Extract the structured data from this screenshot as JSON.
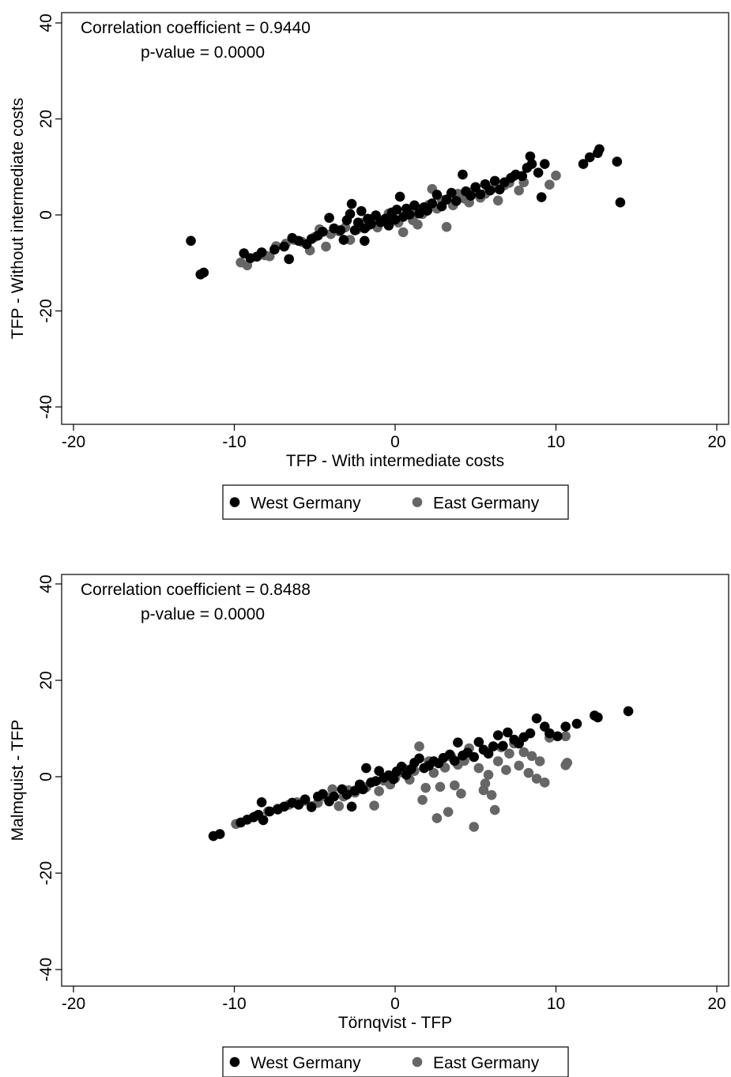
{
  "chart_data": [
    {
      "type": "scatter",
      "annotation": [
        "Correlation coefficient = 0.9440",
        "p-value = 0.0000"
      ],
      "xlabel": "TFP - With intermediate costs",
      "ylabel": "TFP - Without intermediate costs",
      "xlim": [
        -20,
        20
      ],
      "ylim": [
        -40,
        40
      ],
      "xticks": [
        "-20",
        "-10",
        "0",
        "10",
        "20"
      ],
      "yticks": [
        "-40",
        "-20",
        "0",
        "20",
        "40"
      ],
      "grid": false,
      "legend_position": "bottom",
      "series": [
        {
          "name": "West Germany",
          "color": "#000000",
          "points": [
            [
              -12.7,
              -5.4
            ],
            [
              -12.1,
              -12.4
            ],
            [
              -11.9,
              -12.0
            ],
            [
              -9.4,
              -8.0
            ],
            [
              -9.0,
              -9.0
            ],
            [
              -8.6,
              -8.7
            ],
            [
              -8.3,
              -7.8
            ],
            [
              -7.5,
              -7.2
            ],
            [
              -6.9,
              -6.6
            ],
            [
              -6.6,
              -9.2
            ],
            [
              -6.4,
              -4.8
            ],
            [
              -6.0,
              -5.4
            ],
            [
              -5.5,
              -6.1
            ],
            [
              -5.2,
              -5.0
            ],
            [
              -4.8,
              -4.3
            ],
            [
              -4.5,
              -3.5
            ],
            [
              -4.1,
              -0.6
            ],
            [
              -3.8,
              -2.8
            ],
            [
              -3.4,
              -3.2
            ],
            [
              -3.2,
              -5.2
            ],
            [
              -3.0,
              -1.1
            ],
            [
              -2.8,
              0.2
            ],
            [
              -2.7,
              2.3
            ],
            [
              -2.5,
              -3.2
            ],
            [
              -2.3,
              -1.6
            ],
            [
              -2.1,
              0.8
            ],
            [
              -1.9,
              -2.8
            ],
            [
              -1.9,
              -5.4
            ],
            [
              -1.7,
              -0.8
            ],
            [
              -1.5,
              -1.9
            ],
            [
              -1.2,
              -0.1
            ],
            [
              -0.9,
              -1.5
            ],
            [
              -0.6,
              -0.8
            ],
            [
              -0.4,
              -2.2
            ],
            [
              -0.2,
              0.5
            ],
            [
              0.0,
              -1.0
            ],
            [
              0.1,
              1.1
            ],
            [
              0.3,
              3.8
            ],
            [
              0.5,
              -0.4
            ],
            [
              0.7,
              1.3
            ],
            [
              0.9,
              0.1
            ],
            [
              1.2,
              2.0
            ],
            [
              1.5,
              0.3
            ],
            [
              1.8,
              1.6
            ],
            [
              2.0,
              0.9
            ],
            [
              2.3,
              2.4
            ],
            [
              2.6,
              4.2
            ],
            [
              2.9,
              1.8
            ],
            [
              3.2,
              3.2
            ],
            [
              3.5,
              4.6
            ],
            [
              3.8,
              2.9
            ],
            [
              4.2,
              8.4
            ],
            [
              4.4,
              4.9
            ],
            [
              4.7,
              4.0
            ],
            [
              5.0,
              5.8
            ],
            [
              5.3,
              4.3
            ],
            [
              5.6,
              6.4
            ],
            [
              5.9,
              5.1
            ],
            [
              6.2,
              7.1
            ],
            [
              6.5,
              5.3
            ],
            [
              6.8,
              6.8
            ],
            [
              7.2,
              7.7
            ],
            [
              7.5,
              8.4
            ],
            [
              7.9,
              8.1
            ],
            [
              8.2,
              9.8
            ],
            [
              8.5,
              10.6
            ],
            [
              8.4,
              12.2
            ],
            [
              8.9,
              8.8
            ],
            [
              9.1,
              3.7
            ],
            [
              9.3,
              10.6
            ],
            [
              11.7,
              10.6
            ],
            [
              12.1,
              12.0
            ],
            [
              12.6,
              12.9
            ],
            [
              12.7,
              13.7
            ],
            [
              13.8,
              11.1
            ],
            [
              14.0,
              2.6
            ]
          ]
        },
        {
          "name": "East Germany",
          "color": "#666666",
          "points": [
            [
              -9.6,
              -9.9
            ],
            [
              -9.2,
              -10.5
            ],
            [
              -8.1,
              -8.4
            ],
            [
              -7.8,
              -8.6
            ],
            [
              -7.4,
              -6.5
            ],
            [
              -6.8,
              -6.0
            ],
            [
              -6.3,
              -5.2
            ],
            [
              -5.8,
              -5.6
            ],
            [
              -5.3,
              -7.4
            ],
            [
              -5.0,
              -4.6
            ],
            [
              -4.7,
              -3.0
            ],
            [
              -4.3,
              -6.6
            ],
            [
              -4.0,
              -4.0
            ],
            [
              -3.5,
              -3.4
            ],
            [
              -3.1,
              -2.6
            ],
            [
              -2.8,
              -5.2
            ],
            [
              -2.4,
              -3.1
            ],
            [
              -2.1,
              -1.7
            ],
            [
              -1.7,
              -2.3
            ],
            [
              -1.4,
              -0.8
            ],
            [
              -1.1,
              -2.6
            ],
            [
              -0.8,
              -1.1
            ],
            [
              -0.4,
              0.3
            ],
            [
              -0.1,
              -0.9
            ],
            [
              0.2,
              -1.6
            ],
            [
              0.5,
              -3.6
            ],
            [
              0.8,
              0.6
            ],
            [
              1.1,
              -1.1
            ],
            [
              1.4,
              1.3
            ],
            [
              1.7,
              0.2
            ],
            [
              1.4,
              -2.0
            ],
            [
              2.1,
              2.1
            ],
            [
              2.3,
              5.4
            ],
            [
              2.6,
              1.3
            ],
            [
              2.9,
              3.1
            ],
            [
              3.2,
              -2.5
            ],
            [
              3.6,
              2.0
            ],
            [
              3.9,
              4.4
            ],
            [
              4.3,
              3.4
            ],
            [
              4.6,
              2.6
            ],
            [
              4.9,
              5.1
            ],
            [
              5.3,
              3.6
            ],
            [
              5.6,
              4.4
            ],
            [
              6.0,
              5.4
            ],
            [
              6.4,
              3.0
            ],
            [
              6.8,
              6.2
            ],
            [
              7.1,
              6.7
            ],
            [
              7.4,
              8.1
            ],
            [
              7.7,
              5.1
            ],
            [
              8.0,
              6.8
            ],
            [
              9.6,
              6.3
            ],
            [
              10.0,
              8.2
            ]
          ]
        }
      ]
    },
    {
      "type": "scatter",
      "annotation": [
        "Correlation coefficient = 0.8488",
        "p-value = 0.0000"
      ],
      "xlabel": "Törnqvist - TFP",
      "ylabel": "Malmquist - TFP",
      "xlim": [
        -20,
        20
      ],
      "ylim": [
        -40,
        40
      ],
      "xticks": [
        "-20",
        "-10",
        "0",
        "10",
        "20"
      ],
      "yticks": [
        "-40",
        "-20",
        "0",
        "20",
        "40"
      ],
      "grid": false,
      "legend_position": "bottom",
      "series": [
        {
          "name": "West Germany",
          "color": "#000000",
          "points": [
            [
              -11.3,
              -12.3
            ],
            [
              -10.9,
              -11.9
            ],
            [
              -9.6,
              -9.5
            ],
            [
              -9.2,
              -8.9
            ],
            [
              -8.8,
              -8.4
            ],
            [
              -8.5,
              -7.9
            ],
            [
              -8.2,
              -9.0
            ],
            [
              -8.3,
              -5.3
            ],
            [
              -7.8,
              -7.2
            ],
            [
              -7.3,
              -6.8
            ],
            [
              -6.9,
              -6.2
            ],
            [
              -6.4,
              -5.4
            ],
            [
              -6.0,
              -5.8
            ],
            [
              -5.6,
              -4.7
            ],
            [
              -5.2,
              -6.3
            ],
            [
              -4.8,
              -4.1
            ],
            [
              -4.5,
              -3.6
            ],
            [
              -4.1,
              -5.1
            ],
            [
              -3.8,
              -4.1
            ],
            [
              -3.3,
              -2.6
            ],
            [
              -3.0,
              -3.7
            ],
            [
              -2.7,
              -6.2
            ],
            [
              -2.5,
              -2.9
            ],
            [
              -2.2,
              -1.6
            ],
            [
              -2.0,
              -2.6
            ],
            [
              -1.8,
              1.8
            ],
            [
              -1.5,
              -1.2
            ],
            [
              -1.2,
              -0.9
            ],
            [
              -1.0,
              1.2
            ],
            [
              -0.7,
              -0.2
            ],
            [
              -0.4,
              0.3
            ],
            [
              -0.1,
              -0.5
            ],
            [
              0.1,
              1.1
            ],
            [
              0.4,
              2.1
            ],
            [
              0.7,
              0.4
            ],
            [
              1.0,
              1.6
            ],
            [
              1.2,
              2.9
            ],
            [
              1.5,
              3.8
            ],
            [
              1.8,
              1.8
            ],
            [
              2.1,
              2.3
            ],
            [
              2.4,
              3.2
            ],
            [
              2.7,
              2.8
            ],
            [
              3.0,
              3.9
            ],
            [
              3.4,
              4.6
            ],
            [
              3.7,
              3.3
            ],
            [
              3.9,
              7.1
            ],
            [
              4.2,
              4.4
            ],
            [
              4.5,
              5.0
            ],
            [
              4.9,
              4.1
            ],
            [
              5.2,
              7.2
            ],
            [
              5.5,
              5.6
            ],
            [
              5.8,
              4.8
            ],
            [
              6.1,
              6.3
            ],
            [
              6.4,
              8.6
            ],
            [
              6.7,
              6.4
            ],
            [
              7.0,
              9.2
            ],
            [
              7.4,
              7.7
            ],
            [
              7.7,
              6.9
            ],
            [
              8.0,
              8.2
            ],
            [
              8.4,
              9.0
            ],
            [
              8.8,
              12.1
            ],
            [
              9.3,
              10.4
            ],
            [
              9.6,
              9.0
            ],
            [
              10.1,
              8.4
            ],
            [
              10.6,
              10.4
            ],
            [
              11.3,
              11.0
            ],
            [
              12.4,
              12.7
            ],
            [
              12.6,
              12.3
            ],
            [
              14.5,
              13.6
            ]
          ]
        },
        {
          "name": "East Germany",
          "color": "#666666",
          "points": [
            [
              -9.9,
              -9.8
            ],
            [
              -8.7,
              -8.2
            ],
            [
              -7.9,
              -7.2
            ],
            [
              -7.3,
              -6.6
            ],
            [
              -6.6,
              -5.8
            ],
            [
              -6.1,
              -5.3
            ],
            [
              -5.6,
              -5.0
            ],
            [
              -5.2,
              -6.1
            ],
            [
              -4.8,
              -5.4
            ],
            [
              -4.3,
              -4.2
            ],
            [
              -3.9,
              -2.6
            ],
            [
              -3.5,
              -6.1
            ],
            [
              -3.2,
              -4.1
            ],
            [
              -2.9,
              -2.8
            ],
            [
              -2.5,
              -3.3
            ],
            [
              -2.1,
              -1.9
            ],
            [
              -1.8,
              -2.2
            ],
            [
              -1.3,
              -6.0
            ],
            [
              -1.0,
              -3.0
            ],
            [
              -0.7,
              -0.8
            ],
            [
              -0.3,
              -1.6
            ],
            [
              0.0,
              -0.3
            ],
            [
              0.3,
              0.9
            ],
            [
              0.6,
              1.6
            ],
            [
              0.9,
              -0.6
            ],
            [
              1.2,
              1.2
            ],
            [
              1.5,
              6.3
            ],
            [
              1.7,
              -4.8
            ],
            [
              1.9,
              -2.3
            ],
            [
              2.1,
              3.2
            ],
            [
              2.4,
              0.8
            ],
            [
              2.6,
              -8.6
            ],
            [
              2.8,
              -2.1
            ],
            [
              3.1,
              1.9
            ],
            [
              3.3,
              -7.3
            ],
            [
              3.5,
              4.1
            ],
            [
              3.7,
              -1.8
            ],
            [
              3.9,
              2.5
            ],
            [
              4.1,
              -3.5
            ],
            [
              4.3,
              3.3
            ],
            [
              4.6,
              5.9
            ],
            [
              4.9,
              -10.4
            ],
            [
              5.2,
              1.8
            ],
            [
              5.5,
              -2.8
            ],
            [
              5.6,
              -1.4
            ],
            [
              5.8,
              0.4
            ],
            [
              6.0,
              -3.8
            ],
            [
              6.2,
              -6.9
            ],
            [
              6.4,
              3.2
            ],
            [
              6.6,
              6.1
            ],
            [
              6.9,
              1.4
            ],
            [
              7.1,
              4.8
            ],
            [
              7.4,
              6.9
            ],
            [
              7.7,
              2.3
            ],
            [
              8.0,
              5.1
            ],
            [
              8.3,
              0.8
            ],
            [
              8.5,
              4.3
            ],
            [
              8.8,
              -0.4
            ],
            [
              9.0,
              3.2
            ],
            [
              9.3,
              -1.2
            ],
            [
              9.6,
              8.1
            ],
            [
              10.6,
              8.4
            ],
            [
              10.7,
              2.9
            ],
            [
              10.6,
              2.4
            ]
          ]
        }
      ]
    }
  ]
}
